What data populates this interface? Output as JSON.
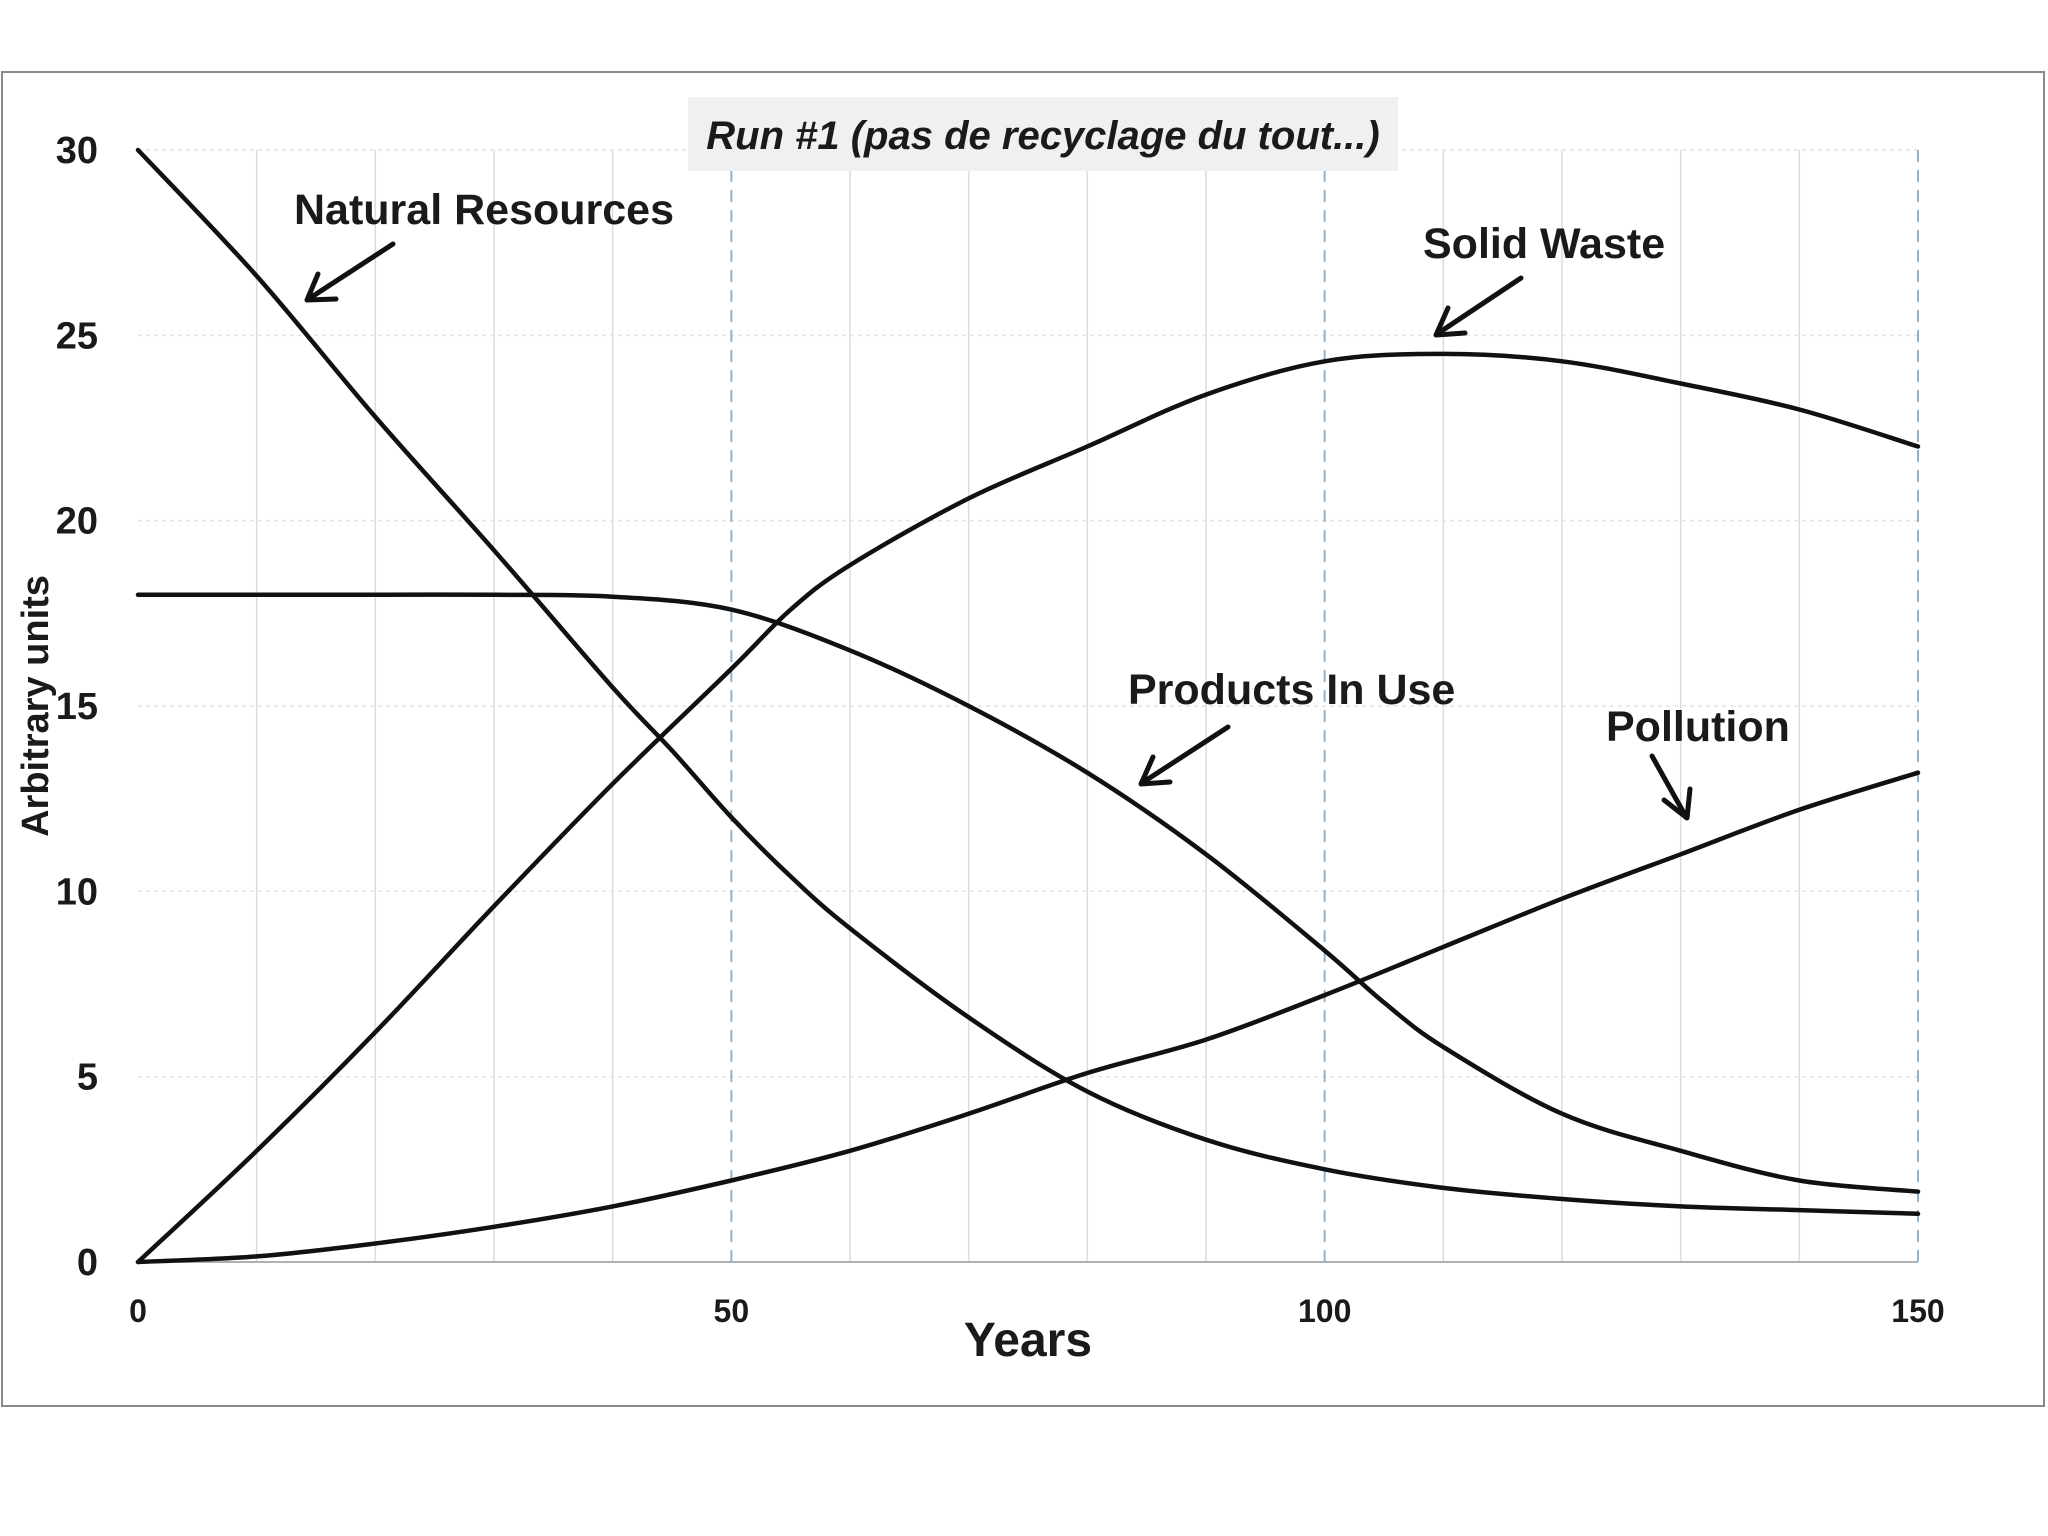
{
  "chart_data": {
    "type": "line",
    "title": "Run #1 (pas de recyclage du tout...)",
    "xlabel": "Years",
    "ylabel": "Arbitrary units",
    "xlim": [
      0,
      150
    ],
    "ylim": [
      0,
      30
    ],
    "x_ticks": [
      0,
      50,
      100,
      150
    ],
    "y_ticks": [
      0,
      5,
      10,
      15,
      20,
      25,
      30
    ],
    "grid": {
      "minor_vertical_every": 10,
      "major_vertical_every": 50,
      "major_style": "dashed",
      "horizontal_every": 5
    },
    "legend": "none",
    "annotations": [
      {
        "text": "Natural Resources",
        "series": "Natural Resources"
      },
      {
        "text": "Solid Waste",
        "series": "Solid Waste"
      },
      {
        "text": "Products In Use",
        "series": "Products In Use"
      },
      {
        "text": "Pollution",
        "series": "Pollution"
      }
    ],
    "series": [
      {
        "name": "Natural Resources",
        "x": [
          0,
          10,
          20,
          30,
          40,
          45,
          50,
          55,
          60,
          70,
          80,
          90,
          100,
          110,
          120,
          130,
          140,
          150
        ],
        "y": [
          30,
          26.6,
          22.8,
          19.2,
          15.5,
          13.8,
          12.0,
          10.4,
          9.0,
          6.6,
          4.6,
          3.3,
          2.5,
          2.0,
          1.7,
          1.5,
          1.4,
          1.3
        ]
      },
      {
        "name": "Products In Use",
        "x": [
          0,
          10,
          20,
          30,
          40,
          50,
          60,
          70,
          80,
          90,
          100,
          105,
          110,
          120,
          130,
          140,
          150
        ],
        "y": [
          18,
          18,
          18,
          18,
          17.95,
          17.6,
          16.5,
          15.0,
          13.2,
          11.0,
          8.4,
          7.0,
          5.8,
          4.0,
          3.0,
          2.2,
          1.9
        ]
      },
      {
        "name": "Solid Waste",
        "x": [
          0,
          10,
          20,
          30,
          40,
          50,
          55,
          60,
          70,
          80,
          90,
          100,
          110,
          120,
          130,
          140,
          150
        ],
        "y": [
          0,
          3.0,
          6.2,
          9.6,
          12.9,
          16.0,
          17.6,
          18.8,
          20.6,
          22.0,
          23.4,
          24.3,
          24.5,
          24.3,
          23.7,
          23.0,
          22.0
        ]
      },
      {
        "name": "Pollution",
        "x": [
          0,
          10,
          20,
          30,
          40,
          50,
          60,
          70,
          80,
          90,
          100,
          110,
          120,
          130,
          140,
          150
        ],
        "y": [
          0,
          0.15,
          0.5,
          0.95,
          1.5,
          2.2,
          3.0,
          4.0,
          5.1,
          6.0,
          7.2,
          8.5,
          9.8,
          11.0,
          12.2,
          13.2
        ]
      }
    ]
  }
}
